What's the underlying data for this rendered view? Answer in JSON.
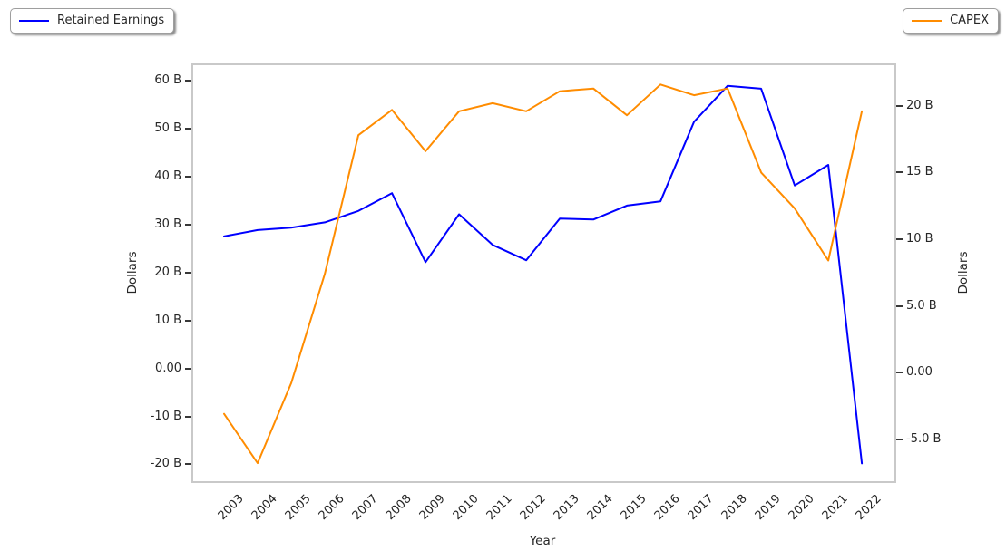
{
  "figure": {
    "background": "#ffffff",
    "plot_border_color": "#c9c9c9"
  },
  "legends": [
    {
      "label": "Retained Earnings",
      "color": "#0000ff",
      "position": "top-left"
    },
    {
      "label": "CAPEX",
      "color": "#ff8c00",
      "position": "top-right"
    }
  ],
  "chart_data": {
    "type": "line",
    "title": "",
    "xlabel": "Year",
    "ylabel_left": "Dollars",
    "ylabel_right": "Dollars",
    "grid": false,
    "x": [
      2003,
      2004,
      2005,
      2006,
      2007,
      2008,
      2009,
      2010,
      2011,
      2012,
      2013,
      2014,
      2015,
      2016,
      2017,
      2018,
      2019,
      2020,
      2021,
      2022
    ],
    "series": [
      {
        "name": "Retained Earnings",
        "axis": "left",
        "color": "#0000ff",
        "units": "billions",
        "values": [
          27.6,
          28.9,
          29.4,
          30.5,
          32.9,
          36.6,
          22.2,
          32.2,
          25.8,
          22.6,
          31.3,
          31.1,
          34.0,
          34.9,
          51.5,
          59.0,
          58.4,
          38.2,
          42.5,
          -19.8
        ]
      },
      {
        "name": "CAPEX",
        "axis": "right",
        "color": "#ff8c00",
        "units": "billions",
        "values": [
          -3.1,
          -6.8,
          -0.8,
          7.4,
          17.8,
          19.7,
          16.6,
          19.6,
          20.2,
          19.6,
          21.1,
          21.3,
          19.3,
          21.6,
          20.8,
          21.3,
          15.0,
          12.3,
          8.4,
          19.6
        ]
      }
    ],
    "x_axis": {
      "range": [
        2002.08,
        2022.97
      ],
      "tick_labels": [
        "2003",
        "2004",
        "2005",
        "2006",
        "2007",
        "2008",
        "2009",
        "2010",
        "2011",
        "2012",
        "2013",
        "2014",
        "2015",
        "2016",
        "2017",
        "2018",
        "2019",
        "2020",
        "2021",
        "2022"
      ]
    },
    "left_axis": {
      "range": [
        -23.5,
        63.3
      ],
      "ticks": [
        {
          "v": 60,
          "label": "60 B"
        },
        {
          "v": 50,
          "label": "50 B"
        },
        {
          "v": 40,
          "label": "40 B"
        },
        {
          "v": 30,
          "label": "30 B"
        },
        {
          "v": 20,
          "label": "20 B"
        },
        {
          "v": 10,
          "label": "10 B"
        },
        {
          "v": 0,
          "label": "0.00"
        },
        {
          "v": -10,
          "label": "-10 B"
        },
        {
          "v": -20,
          "label": "-20 B"
        }
      ]
    },
    "right_axis": {
      "range": [
        -8.15,
        23.05
      ],
      "ticks": [
        {
          "v": 20,
          "label": "20 B"
        },
        {
          "v": 15,
          "label": "15 B"
        },
        {
          "v": 10,
          "label": "10 B"
        },
        {
          "v": 5,
          "label": "5.0 B"
        },
        {
          "v": 0,
          "label": "0.00"
        },
        {
          "v": -5,
          "label": "-5.0 B"
        }
      ]
    }
  }
}
